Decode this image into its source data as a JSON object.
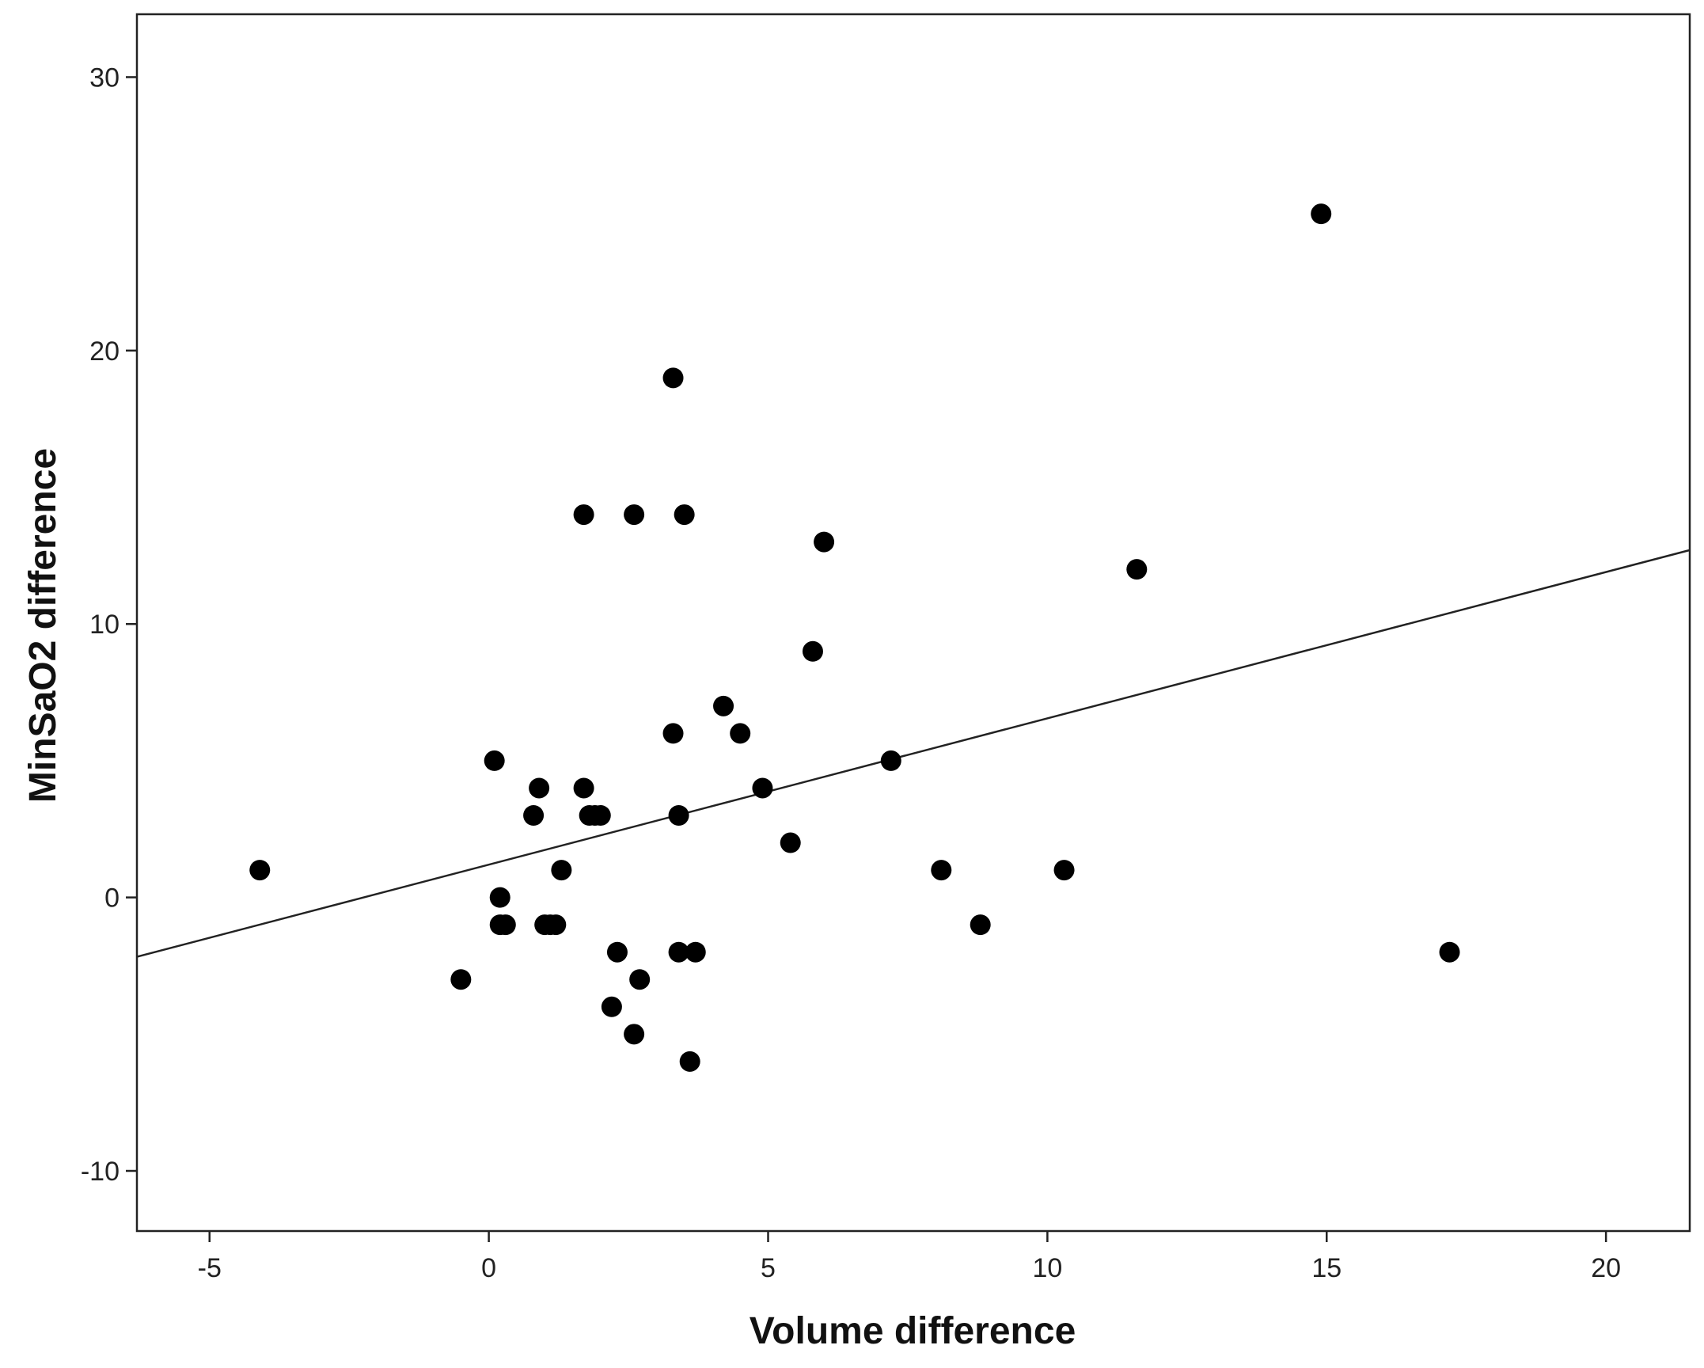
{
  "chart_data": {
    "type": "scatter",
    "xlabel": "Volume difference",
    "ylabel": "MinSaO2 difference",
    "xlim": [
      -6.3,
      21.5
    ],
    "ylim": [
      -12.2,
      32.3
    ],
    "x_ticks": [
      -5,
      0,
      5,
      10,
      15,
      20
    ],
    "y_ticks": [
      -10,
      0,
      10,
      20,
      30
    ],
    "x_tick_labels": [
      "-5",
      "0",
      "5",
      "10",
      "15",
      "20"
    ],
    "y_tick_labels": [
      "-10",
      "0",
      "10",
      "20",
      "30"
    ],
    "grid": false,
    "legend": "none",
    "marker_color": "#000000",
    "fit_line": {
      "type": "linear",
      "color": "#222222",
      "x_range": [
        -6.3,
        21.5
      ],
      "intercept": 1.2,
      "slope": 0.535
    },
    "points": [
      {
        "x": -4.1,
        "y": 1
      },
      {
        "x": -0.5,
        "y": -3
      },
      {
        "x": 0.1,
        "y": 5
      },
      {
        "x": 0.2,
        "y": 0
      },
      {
        "x": 0.2,
        "y": -1
      },
      {
        "x": 0.3,
        "y": -1
      },
      {
        "x": 0.8,
        "y": 3
      },
      {
        "x": 0.9,
        "y": 4
      },
      {
        "x": 1.0,
        "y": -1
      },
      {
        "x": 1.1,
        "y": -1
      },
      {
        "x": 1.2,
        "y": -1
      },
      {
        "x": 1.3,
        "y": 1
      },
      {
        "x": 1.7,
        "y": 14
      },
      {
        "x": 1.7,
        "y": 4
      },
      {
        "x": 1.8,
        "y": 3
      },
      {
        "x": 1.9,
        "y": 3
      },
      {
        "x": 2.0,
        "y": 3
      },
      {
        "x": 2.2,
        "y": -4
      },
      {
        "x": 2.3,
        "y": -2
      },
      {
        "x": 2.6,
        "y": 14
      },
      {
        "x": 2.6,
        "y": -5
      },
      {
        "x": 2.7,
        "y": -3
      },
      {
        "x": 3.3,
        "y": 19
      },
      {
        "x": 3.3,
        "y": 6
      },
      {
        "x": 3.4,
        "y": 3
      },
      {
        "x": 3.4,
        "y": -2
      },
      {
        "x": 3.5,
        "y": 14
      },
      {
        "x": 3.6,
        "y": -6
      },
      {
        "x": 3.7,
        "y": -2
      },
      {
        "x": 4.2,
        "y": 7
      },
      {
        "x": 4.5,
        "y": 6
      },
      {
        "x": 4.9,
        "y": 4
      },
      {
        "x": 5.4,
        "y": 2
      },
      {
        "x": 5.8,
        "y": 9
      },
      {
        "x": 6.0,
        "y": 13
      },
      {
        "x": 7.2,
        "y": 5
      },
      {
        "x": 8.1,
        "y": 1
      },
      {
        "x": 8.8,
        "y": -1
      },
      {
        "x": 10.3,
        "y": 1
      },
      {
        "x": 11.6,
        "y": 12
      },
      {
        "x": 14.9,
        "y": 25
      },
      {
        "x": 17.2,
        "y": -2
      }
    ]
  }
}
